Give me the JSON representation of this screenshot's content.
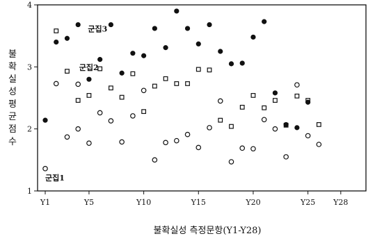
{
  "chart_data": {
    "type": "scatter",
    "title": "",
    "xlabel": "불확실성 측정문항(Y1-Y28)",
    "ylabel": "불확실성 평균점수",
    "xlim": [
      0.3,
      30.3
    ],
    "ylim": [
      1,
      4
    ],
    "x_ticks": [
      1,
      5,
      10,
      15,
      20,
      25,
      28
    ],
    "x_tick_labels": [
      "Y1",
      "Y5",
      "Y10",
      "Y15",
      "Y20",
      "Y25",
      "Y28"
    ],
    "y_ticks": [
      1,
      2,
      3,
      4
    ],
    "grid": false,
    "series": [
      {
        "name": "군집1",
        "marker": "open-circle",
        "color": "#111111",
        "label_at": [
          1,
          1.17
        ],
        "points": [
          [
            1,
            1.36
          ],
          [
            2,
            2.73
          ],
          [
            3,
            1.87
          ],
          [
            4,
            2.0
          ],
          [
            4,
            2.72
          ],
          [
            5,
            1.77
          ],
          [
            6,
            2.26
          ],
          [
            7,
            2.13
          ],
          [
            8,
            1.79
          ],
          [
            9,
            2.21
          ],
          [
            10,
            2.62
          ],
          [
            11,
            1.5
          ],
          [
            12,
            1.78
          ],
          [
            13,
            1.81
          ],
          [
            14,
            1.91
          ],
          [
            15,
            1.7
          ],
          [
            16,
            2.02
          ],
          [
            17,
            2.45
          ],
          [
            18,
            1.47
          ],
          [
            19,
            1.69
          ],
          [
            20,
            1.68
          ],
          [
            21,
            2.15
          ],
          [
            22,
            2.0
          ],
          [
            23,
            1.55
          ],
          [
            24,
            2.71
          ],
          [
            25,
            1.89
          ],
          [
            26,
            1.75
          ]
        ]
      },
      {
        "name": "군집2",
        "marker": "open-square",
        "color": "#111111",
        "label_at": [
          4.1,
          2.95
        ],
        "points": [
          [
            2,
            3.58
          ],
          [
            3,
            2.93
          ],
          [
            4,
            2.46
          ],
          [
            5,
            2.54
          ],
          [
            6,
            2.97
          ],
          [
            7,
            2.66
          ],
          [
            8,
            2.51
          ],
          [
            9,
            2.89
          ],
          [
            10,
            2.28
          ],
          [
            11,
            2.69
          ],
          [
            12,
            2.81
          ],
          [
            13,
            2.73
          ],
          [
            14,
            2.73
          ],
          [
            15,
            2.96
          ],
          [
            16,
            2.95
          ],
          [
            17,
            2.14
          ],
          [
            18,
            2.04
          ],
          [
            19,
            2.35
          ],
          [
            20,
            2.54
          ],
          [
            21,
            2.34
          ],
          [
            22,
            2.46
          ],
          [
            23,
            2.06
          ],
          [
            24,
            2.53
          ],
          [
            25,
            2.46
          ],
          [
            26,
            2.07
          ]
        ]
      },
      {
        "name": "군집3",
        "marker": "filled-circle",
        "color": "#111111",
        "label_at": [
          4.9,
          3.57
        ],
        "points": [
          [
            1,
            2.14
          ],
          [
            2,
            3.4
          ],
          [
            3,
            3.46
          ],
          [
            4,
            3.68
          ],
          [
            5,
            2.8
          ],
          [
            6,
            3.12
          ],
          [
            7,
            3.68
          ],
          [
            8,
            2.9
          ],
          [
            9,
            3.22
          ],
          [
            10,
            3.18
          ],
          [
            11,
            3.62
          ],
          [
            12,
            3.31
          ],
          [
            13,
            3.9
          ],
          [
            14,
            3.62
          ],
          [
            15,
            3.37
          ],
          [
            16,
            3.68
          ],
          [
            17,
            3.25
          ],
          [
            18,
            3.05
          ],
          [
            19,
            3.06
          ],
          [
            20,
            3.48
          ],
          [
            21,
            3.73
          ],
          [
            22,
            2.58
          ],
          [
            23,
            2.07
          ],
          [
            24,
            2.02
          ],
          [
            25,
            2.43
          ]
        ]
      }
    ]
  }
}
